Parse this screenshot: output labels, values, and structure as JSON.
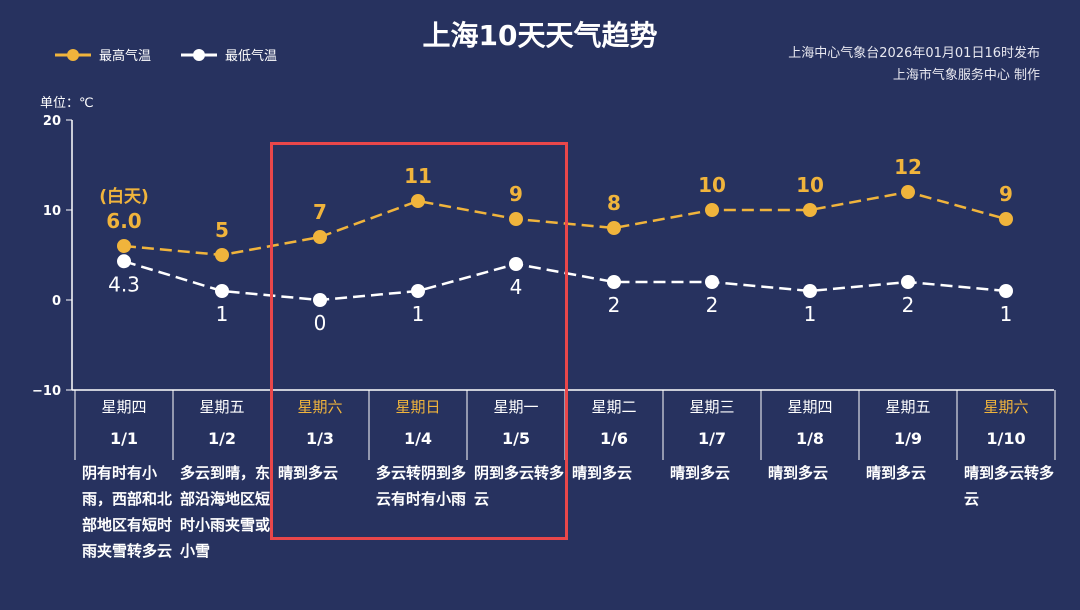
{
  "title": "上海10天天气趋势",
  "source_line1": "上海中心气象台2026年01月01日16时发布",
  "source_line2": "上海市气象服务中心 制作",
  "unit": "单位：℃",
  "day_note": "(白天)",
  "colors": {
    "high": "#f0b43c",
    "low": "#ffffff",
    "background": "#27325f",
    "highlight": "#e9474a",
    "weekend": "#f0b43c"
  },
  "chart_data": {
    "type": "line",
    "ylim": [
      -10,
      20
    ],
    "yticks": [
      "20",
      "10",
      "0",
      "−10"
    ],
    "ytick_values": [
      20,
      10,
      0,
      -10
    ],
    "series": [
      {
        "name": "最高气温",
        "values": [
          6,
          5,
          7,
          11,
          9,
          8,
          10,
          10,
          12,
          9
        ],
        "labels": [
          "6.0",
          "5",
          "7",
          "11",
          "9",
          "8",
          "10",
          "10",
          "12",
          "9"
        ]
      },
      {
        "name": "最低气温",
        "values": [
          4.3,
          1,
          0,
          1,
          4,
          2,
          2,
          1,
          2,
          1
        ],
        "labels": [
          "4.3",
          "1",
          "0",
          "1",
          "4",
          "2",
          "2",
          "1",
          "2",
          "1"
        ]
      }
    ],
    "categories": [
      "1/1",
      "1/2",
      "1/3",
      "1/4",
      "1/5",
      "1/6",
      "1/7",
      "1/8",
      "1/9",
      "1/10"
    ],
    "weekdays": [
      "星期四",
      "星期五",
      "星期六",
      "星期日",
      "星期一",
      "星期二",
      "星期三",
      "星期四",
      "星期五",
      "星期六"
    ],
    "weekend": [
      false,
      false,
      true,
      true,
      false,
      false,
      false,
      false,
      false,
      true
    ],
    "descriptions": [
      "阴有时有小雨，西部和北部地区有短时雨夹雪转多云",
      "多云到晴，东部沿海地区短时小雨夹雪或小雪",
      "晴到多云",
      "多云转阴到多云有时有小雨",
      "阴到多云转多云",
      "晴到多云",
      "晴到多云",
      "晴到多云",
      "晴到多云",
      "晴到多云转多云"
    ]
  }
}
